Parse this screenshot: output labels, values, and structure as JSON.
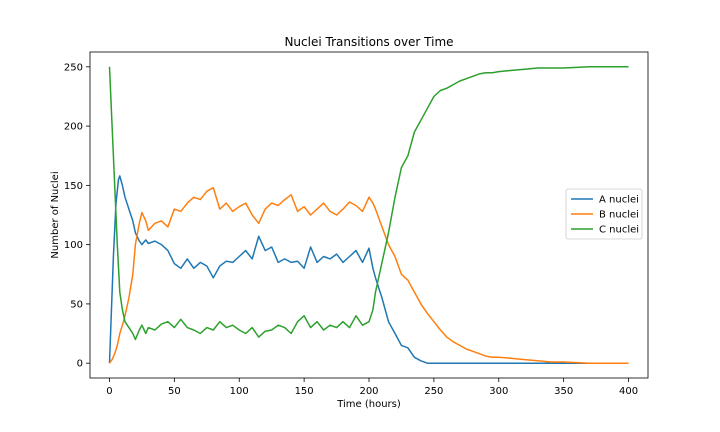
{
  "chart_data": {
    "type": "line",
    "title": "Nuclei Transitions over Time",
    "xlabel": "Time (hours)",
    "ylabel": "Number of Nuclei",
    "xlim": [
      -15,
      415
    ],
    "ylim": [
      -12.5,
      262.5
    ],
    "xticks": [
      0,
      50,
      100,
      150,
      200,
      250,
      300,
      350,
      400
    ],
    "yticks": [
      0,
      50,
      100,
      150,
      200,
      250
    ],
    "grid": false,
    "legend_position": "center-right",
    "series": [
      {
        "name": "A nuclei",
        "color": "#1f77b4",
        "x": [
          0,
          3,
          5,
          7,
          8,
          10,
          12,
          15,
          18,
          20,
          23,
          25,
          28,
          30,
          35,
          40,
          45,
          50,
          55,
          60,
          65,
          70,
          75,
          80,
          85,
          90,
          95,
          100,
          105,
          110,
          115,
          120,
          125,
          130,
          135,
          140,
          145,
          150,
          155,
          160,
          165,
          170,
          175,
          180,
          185,
          190,
          195,
          200,
          203,
          205,
          210,
          215,
          220,
          225,
          230,
          235,
          240,
          245,
          250,
          260,
          280,
          300,
          330,
          369
        ],
        "y": [
          0,
          90,
          135,
          155,
          158,
          150,
          140,
          130,
          120,
          110,
          103,
          100,
          104,
          101,
          103,
          100,
          95,
          84,
          80,
          88,
          80,
          85,
          82,
          72,
          82,
          86,
          85,
          90,
          95,
          88,
          107,
          95,
          98,
          85,
          88,
          85,
          86,
          80,
          98,
          85,
          90,
          88,
          92,
          85,
          90,
          95,
          85,
          97,
          80,
          72,
          55,
          35,
          25,
          15,
          13,
          5,
          2,
          0,
          0,
          0,
          0,
          0,
          0,
          0
        ]
      },
      {
        "name": "B nuclei",
        "color": "#ff7f0e",
        "x": [
          0,
          2,
          4,
          6,
          8,
          10,
          12,
          15,
          18,
          20,
          23,
          25,
          28,
          30,
          35,
          40,
          45,
          50,
          55,
          60,
          65,
          70,
          75,
          80,
          85,
          90,
          95,
          100,
          105,
          110,
          115,
          120,
          125,
          130,
          135,
          140,
          145,
          150,
          155,
          160,
          165,
          170,
          175,
          180,
          185,
          190,
          195,
          200,
          203,
          205,
          210,
          215,
          220,
          225,
          230,
          235,
          240,
          245,
          250,
          255,
          260,
          265,
          270,
          275,
          280,
          285,
          290,
          295,
          300,
          310,
          320,
          330,
          340,
          350,
          370,
          400
        ],
        "y": [
          0,
          3,
          8,
          15,
          25,
          32,
          40,
          55,
          75,
          100,
          118,
          127,
          120,
          112,
          118,
          120,
          115,
          130,
          128,
          135,
          140,
          138,
          145,
          148,
          130,
          135,
          128,
          132,
          135,
          125,
          118,
          130,
          135,
          133,
          138,
          142,
          128,
          132,
          125,
          130,
          135,
          128,
          125,
          130,
          136,
          133,
          128,
          140,
          135,
          130,
          115,
          100,
          90,
          75,
          70,
          60,
          50,
          42,
          35,
          28,
          22,
          18,
          15,
          12,
          10,
          8,
          6,
          5,
          5,
          4,
          3,
          2,
          1,
          1,
          0,
          0
        ]
      },
      {
        "name": "C nuclei",
        "color": "#2ca02c",
        "x": [
          0,
          2,
          4,
          6,
          8,
          10,
          12,
          15,
          18,
          20,
          23,
          25,
          28,
          30,
          35,
          40,
          45,
          50,
          55,
          60,
          65,
          70,
          75,
          80,
          85,
          90,
          95,
          100,
          105,
          110,
          115,
          120,
          125,
          130,
          135,
          140,
          145,
          150,
          155,
          160,
          165,
          170,
          175,
          180,
          185,
          190,
          195,
          200,
          203,
          205,
          210,
          215,
          220,
          225,
          230,
          235,
          240,
          245,
          250,
          255,
          260,
          265,
          270,
          275,
          280,
          285,
          290,
          295,
          300,
          310,
          320,
          330,
          340,
          350,
          370,
          400
        ],
        "y": [
          250,
          200,
          150,
          100,
          60,
          45,
          35,
          30,
          25,
          20,
          28,
          32,
          25,
          30,
          28,
          33,
          35,
          30,
          37,
          30,
          28,
          25,
          30,
          28,
          35,
          30,
          32,
          28,
          25,
          30,
          22,
          27,
          28,
          32,
          30,
          25,
          35,
          40,
          30,
          35,
          28,
          32,
          30,
          35,
          30,
          40,
          32,
          35,
          45,
          60,
          85,
          110,
          140,
          165,
          175,
          195,
          205,
          215,
          225,
          230,
          232,
          235,
          238,
          240,
          242,
          244,
          245,
          245,
          246,
          247,
          248,
          249,
          249,
          249,
          250,
          250
        ]
      }
    ]
  }
}
